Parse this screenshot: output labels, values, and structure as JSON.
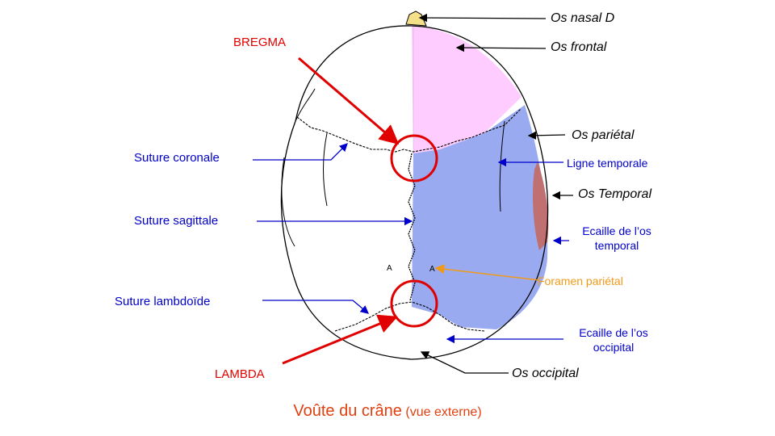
{
  "labels": {
    "nasal": "Os nasal D",
    "frontal": "Os frontal",
    "parietal": "Os pariétal",
    "temporal": "Os Temporal",
    "occipital": "Os occipital",
    "bregma": "BREGMA",
    "lambda": "LAMBDA",
    "suture_coronale": "Suture coronale",
    "suture_sagittale": "Suture sagittale",
    "suture_lambdoide": "Suture lambdoïde",
    "ligne_temporale": "Ligne temporale",
    "ecaille_temporal_1": "Ecaille de l’os",
    "ecaille_temporal_2": "temporal",
    "foramen": "Foramen pariétal",
    "ecaille_occipital_1": "Ecaille de l’os",
    "ecaille_occipital_2": "occipital"
  },
  "caption": {
    "main": "Voûte du crâne",
    "sub": "(vue externe)"
  },
  "colors": {
    "frontal": "#ffccff",
    "parietal": "#99aaf0",
    "temporal": "#c07070",
    "nasal": "#f5e08a",
    "red": "#e00000",
    "blue": "#0000cc",
    "orange": "#f09a1a",
    "caption": "#e04010"
  }
}
